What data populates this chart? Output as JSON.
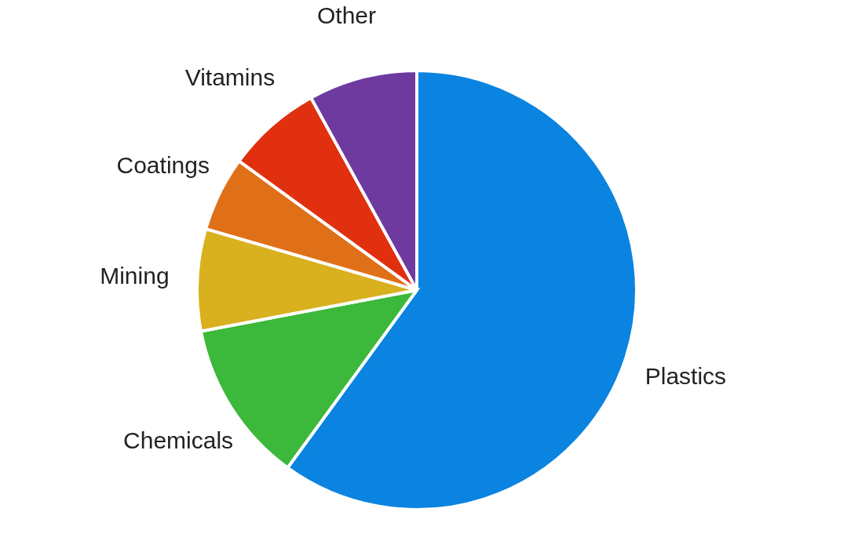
{
  "chart_data": {
    "type": "pie",
    "categories": [
      "Plastics",
      "Chemicals",
      "Mining",
      "Coatings",
      "Vitamins",
      "Other"
    ],
    "values": [
      60,
      12,
      7.5,
      5.5,
      7,
      8
    ],
    "colors": [
      "#0a84e0",
      "#3cb83a",
      "#d9b01e",
      "#e07018",
      "#e0300f",
      "#6e3aa0"
    ],
    "legend": false
  }
}
